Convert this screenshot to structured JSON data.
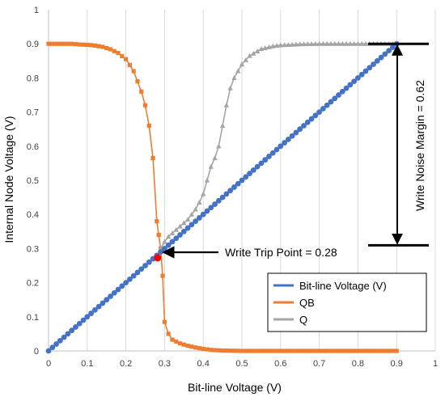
{
  "chart_data": {
    "type": "line",
    "xlabel": "Bit-line Voltage (V)",
    "ylabel": "Internal Node Voltage (V)",
    "xlim": [
      0,
      1
    ],
    "ylim": [
      0,
      1
    ],
    "xticks": [
      "0",
      "0.1",
      "0.2",
      "0.3",
      "0.4",
      "0.5",
      "0.6",
      "0.7",
      "0.8",
      "0.9",
      "1"
    ],
    "yticks": [
      "0",
      "0.1",
      "0.2",
      "0.3",
      "0.4",
      "0.5",
      "0.6",
      "0.7",
      "0.8",
      "0.9",
      "1"
    ],
    "grid": "vertical",
    "legend_position": "bottom-right",
    "series": [
      {
        "name": "Bit-line Voltage (V)",
        "color": "#4472C4",
        "marker": "circle",
        "x": [
          0,
          0.05,
          0.1,
          0.15,
          0.2,
          0.25,
          0.28,
          0.3,
          0.35,
          0.4,
          0.45,
          0.5,
          0.55,
          0.6,
          0.65,
          0.7,
          0.75,
          0.8,
          0.85,
          0.9
        ],
        "y": [
          0,
          0.05,
          0.1,
          0.15,
          0.2,
          0.25,
          0.28,
          0.3,
          0.35,
          0.4,
          0.45,
          0.5,
          0.55,
          0.6,
          0.65,
          0.7,
          0.75,
          0.8,
          0.85,
          0.9
        ]
      },
      {
        "name": "QB",
        "color": "#ED7D31",
        "marker": "square",
        "x": [
          0,
          0.02,
          0.04,
          0.06,
          0.08,
          0.1,
          0.12,
          0.14,
          0.16,
          0.18,
          0.2,
          0.21,
          0.22,
          0.23,
          0.24,
          0.25,
          0.26,
          0.27,
          0.28,
          0.285,
          0.29,
          0.295,
          0.3,
          0.31,
          0.32,
          0.34,
          0.36,
          0.38,
          0.4,
          0.42,
          0.45,
          0.5,
          0.6,
          0.7,
          0.8,
          0.9
        ],
        "y": [
          0.9,
          0.9,
          0.9,
          0.9,
          0.898,
          0.897,
          0.895,
          0.891,
          0.884,
          0.873,
          0.855,
          0.838,
          0.82,
          0.79,
          0.76,
          0.72,
          0.66,
          0.565,
          0.38,
          0.34,
          0.3,
          0.22,
          0.085,
          0.05,
          0.033,
          0.022,
          0.015,
          0.01,
          0.006,
          0.003,
          0.001,
          0,
          0,
          0,
          0,
          0
        ]
      },
      {
        "name": "Q",
        "color": "#A5A5A5",
        "marker": "triangle",
        "x": [
          0.28,
          0.29,
          0.3,
          0.31,
          0.32,
          0.33,
          0.34,
          0.35,
          0.36,
          0.37,
          0.38,
          0.39,
          0.4,
          0.41,
          0.42,
          0.43,
          0.44,
          0.45,
          0.46,
          0.47,
          0.48,
          0.5,
          0.52,
          0.55,
          0.58,
          0.6,
          0.65,
          0.7,
          0.8,
          0.9
        ],
        "y": [
          0.28,
          0.3,
          0.32,
          0.335,
          0.345,
          0.355,
          0.365,
          0.375,
          0.385,
          0.4,
          0.415,
          0.435,
          0.46,
          0.5,
          0.54,
          0.565,
          0.6,
          0.66,
          0.72,
          0.77,
          0.8,
          0.84,
          0.865,
          0.885,
          0.893,
          0.896,
          0.899,
          0.9,
          0.9,
          0.9
        ]
      }
    ],
    "annotations": {
      "trip_point_label": "Write Trip Point = 0.28",
      "margin_label": "Write Noise Margin = 0.62"
    }
  }
}
